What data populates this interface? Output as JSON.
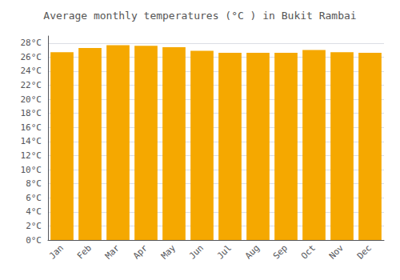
{
  "chart_data": {
    "type": "bar",
    "title": "Average monthly temperatures (°C ) in Bukit Rambai",
    "categories": [
      "Jan",
      "Feb",
      "Mar",
      "Apr",
      "May",
      "Jun",
      "Jul",
      "Aug",
      "Sep",
      "Oct",
      "Nov",
      "Dec"
    ],
    "values": [
      26.7,
      27.3,
      27.7,
      27.6,
      27.4,
      26.9,
      26.6,
      26.6,
      26.6,
      27.0,
      26.7,
      26.6
    ],
    "color": "#F5A800",
    "ylim": [
      0,
      29
    ],
    "yticks": [
      {
        "value": 0,
        "label": "0°C"
      },
      {
        "value": 2,
        "label": "2°C"
      },
      {
        "value": 4,
        "label": "4°C"
      },
      {
        "value": 6,
        "label": "6°C"
      },
      {
        "value": 8,
        "label": "8°C"
      },
      {
        "value": 10,
        "label": "10°C"
      },
      {
        "value": 12,
        "label": "12°C"
      },
      {
        "value": 14,
        "label": "14°C"
      },
      {
        "value": 16,
        "label": "16°C"
      },
      {
        "value": 18,
        "label": "18°C"
      },
      {
        "value": 20,
        "label": "20°C"
      },
      {
        "value": 22,
        "label": "22°C"
      },
      {
        "value": 24,
        "label": "24°C"
      },
      {
        "value": 26,
        "label": "26°C"
      },
      {
        "value": 28,
        "label": "28°C"
      }
    ],
    "grid": true
  }
}
